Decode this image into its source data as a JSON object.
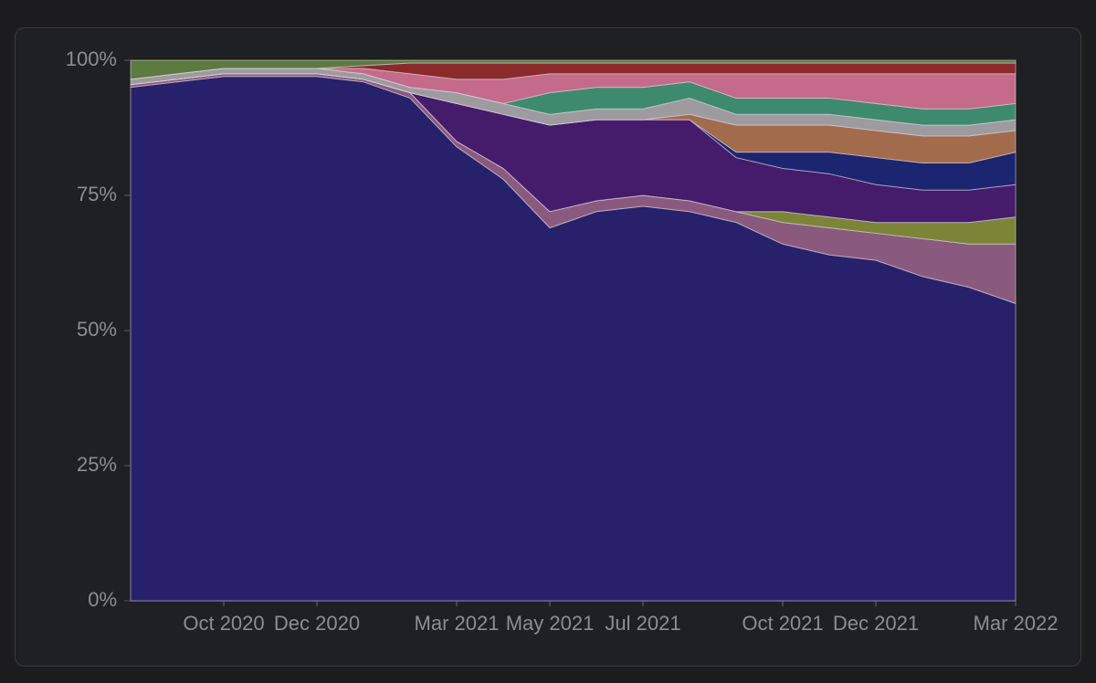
{
  "chart_data": {
    "type": "stacked-area-percent",
    "x": [
      "2020-08",
      "2020-09",
      "2020-10",
      "2020-11",
      "2020-12",
      "2021-01",
      "2021-02",
      "2021-03",
      "2021-04",
      "2021-05",
      "2021-06",
      "2021-07",
      "2021-08",
      "2021-09",
      "2021-10",
      "2021-11",
      "2021-12",
      "2022-01",
      "2022-02",
      "2022-03"
    ],
    "xlim": [
      "2020-08",
      "2022-03"
    ],
    "xticks": [
      {
        "value": "2020-10",
        "label": "Oct 2020"
      },
      {
        "value": "2020-12",
        "label": "Dec 2020"
      },
      {
        "value": "2021-03",
        "label": "Mar 2021"
      },
      {
        "value": "2021-05",
        "label": "May 2021"
      },
      {
        "value": "2021-07",
        "label": "Jul 2021"
      },
      {
        "value": "2021-10",
        "label": "Oct 2021"
      },
      {
        "value": "2021-12",
        "label": "Dec 2021"
      },
      {
        "value": "2022-03",
        "label": "Mar 2022"
      }
    ],
    "ylim": [
      0,
      100
    ],
    "yticks": [
      {
        "value": 0,
        "label": "0%"
      },
      {
        "value": 25,
        "label": "25%"
      },
      {
        "value": 50,
        "label": "50%"
      },
      {
        "value": 75,
        "label": "75%"
      },
      {
        "value": 100,
        "label": "100%"
      }
    ],
    "series": [
      {
        "color": "#27216b",
        "values": [
          95,
          96,
          97,
          97,
          97,
          96,
          93,
          84,
          78,
          69,
          72,
          73,
          72,
          70,
          66,
          64,
          63,
          60,
          58,
          55
        ]
      },
      {
        "color": "#8a5a7e",
        "values": [
          0.5,
          0.5,
          0.5,
          0.5,
          0.5,
          0.5,
          1,
          1,
          2,
          3,
          2,
          2,
          2,
          2,
          4,
          5,
          5,
          7,
          8,
          11
        ]
      },
      {
        "color": "#7c8438",
        "values": [
          0,
          0,
          0,
          0,
          0,
          0,
          0,
          0,
          0,
          0,
          0,
          0,
          0,
          0,
          2,
          2,
          2,
          3,
          4,
          5
        ]
      },
      {
        "color": "#451b6c",
        "values": [
          0,
          0,
          0,
          0,
          0,
          0,
          0,
          7,
          10,
          16,
          15,
          14,
          15,
          10,
          8,
          8,
          7,
          6,
          6,
          6
        ]
      },
      {
        "color": "#1b2570",
        "values": [
          0,
          0,
          0,
          0,
          0,
          0,
          0,
          0,
          0,
          0,
          0,
          0,
          0,
          1,
          3,
          4,
          5,
          5,
          5,
          6
        ]
      },
      {
        "color": "#a26c4c",
        "values": [
          0,
          0,
          0,
          0,
          0,
          0,
          0,
          0,
          0,
          0,
          0,
          0,
          1,
          5,
          5,
          5,
          5,
          5,
          5,
          4
        ]
      },
      {
        "color": "#9d9aa0",
        "values": [
          1,
          1,
          1,
          1,
          1,
          1,
          1,
          2,
          2,
          2,
          2,
          2,
          3,
          2,
          2,
          2,
          2,
          2,
          2,
          2
        ]
      },
      {
        "color": "#3e8a6e",
        "values": [
          0,
          0,
          0,
          0,
          0,
          0,
          0,
          0,
          0,
          4,
          4,
          4,
          3,
          3,
          3,
          3,
          3,
          3,
          3,
          3
        ]
      },
      {
        "color": "#c46a8a",
        "values": [
          0,
          0,
          0,
          0,
          0,
          1,
          2.5,
          2.5,
          4.5,
          3.5,
          2.5,
          2.5,
          1.5,
          4.5,
          4.5,
          4.5,
          5.5,
          6.5,
          6.5,
          5.5
        ]
      },
      {
        "color": "#8a2a2a",
        "values": [
          0,
          0,
          0,
          0,
          0,
          0.5,
          2,
          3,
          3,
          2,
          2,
          2,
          2,
          2,
          2,
          2,
          2,
          2,
          2,
          2
        ]
      },
      {
        "color": "#5d7a40",
        "values": [
          3.5,
          2.5,
          1.5,
          1.5,
          1.5,
          1,
          0.5,
          0.5,
          0.5,
          0.5,
          0.5,
          0.5,
          0.5,
          0.5,
          0.5,
          0.5,
          0.5,
          0.5,
          0.5,
          0.5
        ]
      }
    ]
  }
}
